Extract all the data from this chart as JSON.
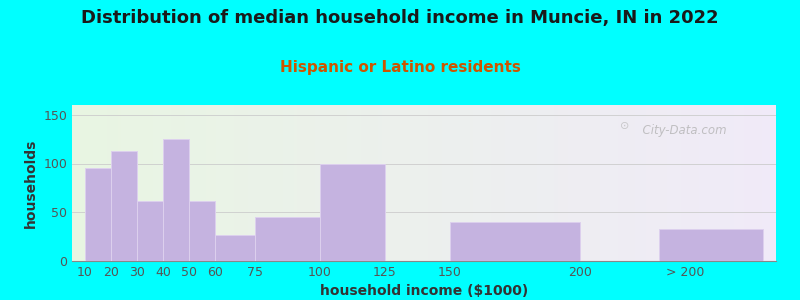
{
  "title": "Distribution of median household income in Muncie, IN in 2022",
  "subtitle": "Hispanic or Latino residents",
  "xlabel": "household income ($1000)",
  "ylabel": "households",
  "bar_labels": [
    "10",
    "20",
    "30",
    "40",
    "50",
    "60",
    "75",
    "100",
    "125",
    "150",
    "200",
    "> 200"
  ],
  "bar_values": [
    95,
    113,
    62,
    125,
    62,
    27,
    45,
    99,
    0,
    40,
    0,
    33
  ],
  "bar_color": "#c5b3e0",
  "bar_edgecolor": "#ddd0ee",
  "background_color": "#00ffff",
  "plot_bg_left": "#e8f5e2",
  "plot_bg_right": "#f0eaf8",
  "title_fontsize": 13,
  "subtitle_fontsize": 11,
  "subtitle_color": "#cc5500",
  "axis_label_fontsize": 10,
  "tick_fontsize": 9,
  "ylim": [
    0,
    160
  ],
  "yticks": [
    0,
    50,
    100,
    150
  ],
  "watermark": "  City-Data.com"
}
